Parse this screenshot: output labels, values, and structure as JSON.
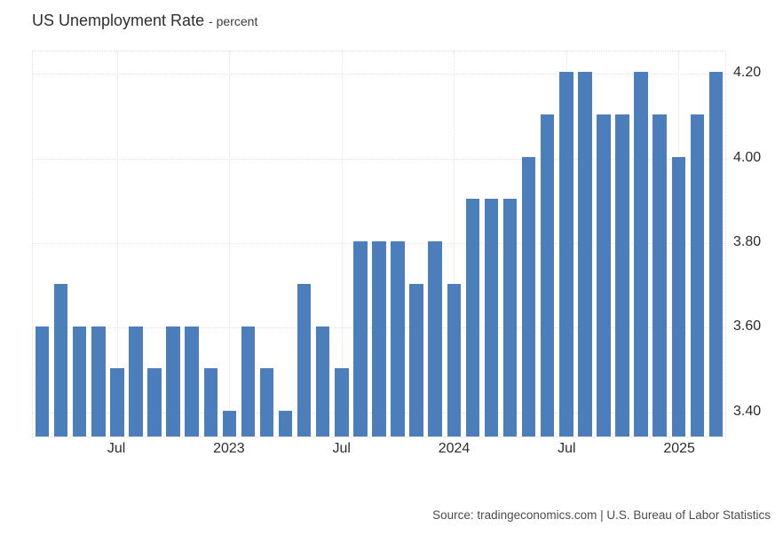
{
  "header": {
    "title": "US Unemployment Rate",
    "subtitle": "- percent"
  },
  "source": {
    "text": "Source: tradingeconomics.com | U.S. Bureau of Labor Statistics"
  },
  "chart_data": {
    "type": "bar",
    "title": "US Unemployment Rate",
    "unit": "percent",
    "x": [
      "2022-03",
      "2022-04",
      "2022-05",
      "2022-06",
      "2022-07",
      "2022-08",
      "2022-09",
      "2022-10",
      "2022-11",
      "2022-12",
      "2023-01",
      "2023-02",
      "2023-03",
      "2023-04",
      "2023-05",
      "2023-06",
      "2023-07",
      "2023-08",
      "2023-09",
      "2023-10",
      "2023-11",
      "2023-12",
      "2024-01",
      "2024-02",
      "2024-03",
      "2024-04",
      "2024-05",
      "2024-06",
      "2024-07",
      "2024-08",
      "2024-09",
      "2024-10",
      "2024-11",
      "2024-12",
      "2025-01",
      "2025-02",
      "2025-03"
    ],
    "values": [
      3.6,
      3.7,
      3.6,
      3.6,
      3.5,
      3.6,
      3.5,
      3.6,
      3.6,
      3.5,
      3.4,
      3.6,
      3.5,
      3.4,
      3.7,
      3.6,
      3.5,
      3.8,
      3.8,
      3.8,
      3.7,
      3.8,
      3.7,
      3.9,
      3.9,
      3.9,
      4.0,
      4.1,
      4.2,
      4.2,
      4.1,
      4.1,
      4.2,
      4.1,
      4.0,
      4.1,
      4.2
    ],
    "bar_color": "#4d7ebc",
    "ylim": [
      3.339,
      4.253
    ],
    "yticks": [
      3.4,
      3.6,
      3.8,
      4.0,
      4.2
    ],
    "ytick_labels": [
      "3.40",
      "3.60",
      "3.80",
      "4.00",
      "4.20"
    ],
    "ytick_side": "right",
    "xticks": [
      {
        "index": 4,
        "label": "Jul"
      },
      {
        "index": 10,
        "label": "2023"
      },
      {
        "index": 16,
        "label": "Jul"
      },
      {
        "index": 22,
        "label": "2024"
      },
      {
        "index": 28,
        "label": "Jul"
      },
      {
        "index": 34,
        "label": "2025"
      }
    ],
    "grid": true,
    "legend": "none"
  }
}
